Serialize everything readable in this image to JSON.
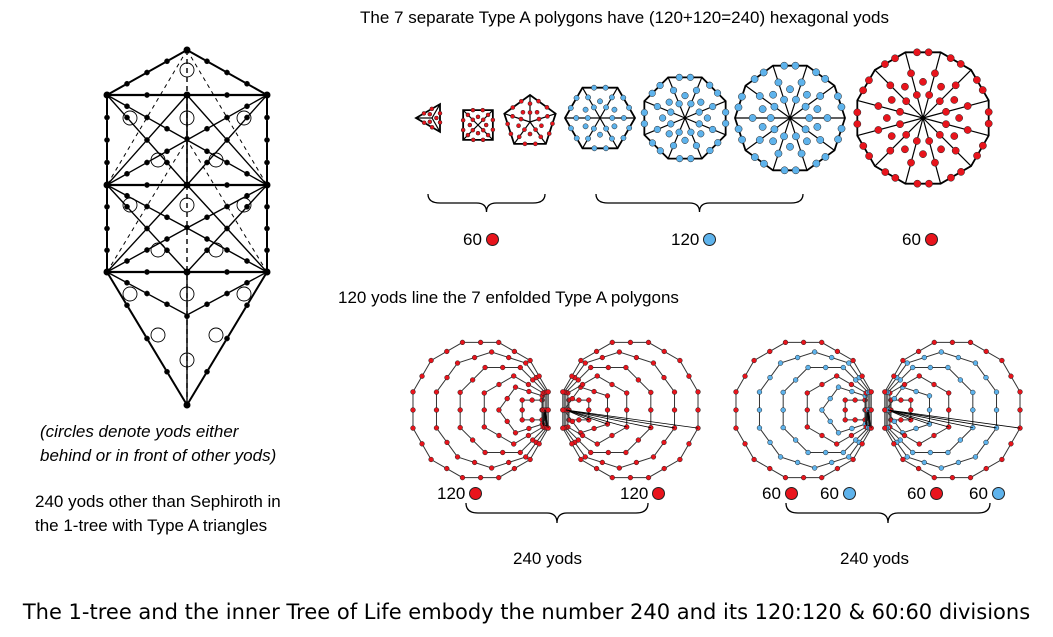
{
  "title_top": "The 7 separate Type A polygons have (120+120=240) hexagonal yods",
  "title_middle": "120 yods line the 7 enfolded Type A polygons",
  "note_circles_line1": "(circles denote yods either",
  "note_circles_line2": "behind or in front of other yods)",
  "note_240_line1": "240 yods other than Sephiroth in",
  "note_240_line2": "the 1-tree with Type A triangles",
  "caption": "The 1-tree and the inner Tree of Life embody the number 240 and its 120:120 & 60:60 divisions",
  "colors": {
    "red": "#e8141c",
    "blue": "#5eb3ec",
    "black": "#000000"
  },
  "top_groups": [
    {
      "value": "60",
      "color": "red"
    },
    {
      "value": "120",
      "color": "blue"
    },
    {
      "value": "60",
      "color": "red"
    }
  ],
  "bottom_counts": [
    {
      "value": "120",
      "color": "red"
    },
    {
      "value": "120",
      "color": "red"
    },
    {
      "value": "60",
      "color": "red"
    },
    {
      "value": "60",
      "color": "blue"
    },
    {
      "value": "60",
      "color": "red"
    },
    {
      "value": "60",
      "color": "blue"
    }
  ],
  "bottom_totals": [
    {
      "value": "240 yods"
    },
    {
      "value": "240 yods"
    }
  ]
}
